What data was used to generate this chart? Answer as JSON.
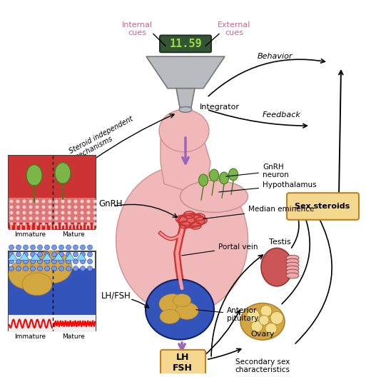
{
  "bg_color": "#ffffff",
  "labels": {
    "internal_cues": "Internal\ncues",
    "external_cues": "External\ncues",
    "display": "11.59",
    "integrator": "Integrator",
    "steroid_indep": "Steroid independent\nmechanisms",
    "behavior": "Behavior",
    "feedback": "Feedback",
    "gnrh_neuron": "GnRH\nneuron",
    "hypothalamus": "Hypothalamus",
    "median_eminence": "Median eminence",
    "portal_vein": "Portal vein",
    "gnrh": "GnRH",
    "lhfsh_label": "LH/FSH",
    "anterior_pituitary": "Anterior\npituitary",
    "lhfsh_box": "LH\nFSH",
    "testis": "Testis",
    "ovary": "Ovary",
    "secondary_sex": "Secondary sex\ncharacteristics",
    "sex_steroids": "Sex steroids",
    "immature1": "Immature",
    "mature1": "Mature",
    "immature2": "Immature",
    "mature2": "Mature"
  },
  "colors": {
    "pink_bg": "#f0b8b8",
    "pink_label": "#cc6688",
    "green_neuron": "#7ab648",
    "dark_green": "#4a7a20",
    "red_vessel": "#cc3333",
    "dark_blue": "#1a3a7a",
    "blue_pituitary": "#3355bb",
    "purple_arrow": "#9966bb",
    "box_orange_fill": "#f5d890",
    "box_outline": "#c08020",
    "display_green": "#99dd44",
    "display_bg": "#335533",
    "text_color": "#000000",
    "inset_red_bg": "#cc3333",
    "inset_blue_bg": "#3355bb",
    "testis_red": "#cc5555",
    "ovary_tan": "#d4a840",
    "gray_funnel": "#b8bcc0"
  }
}
